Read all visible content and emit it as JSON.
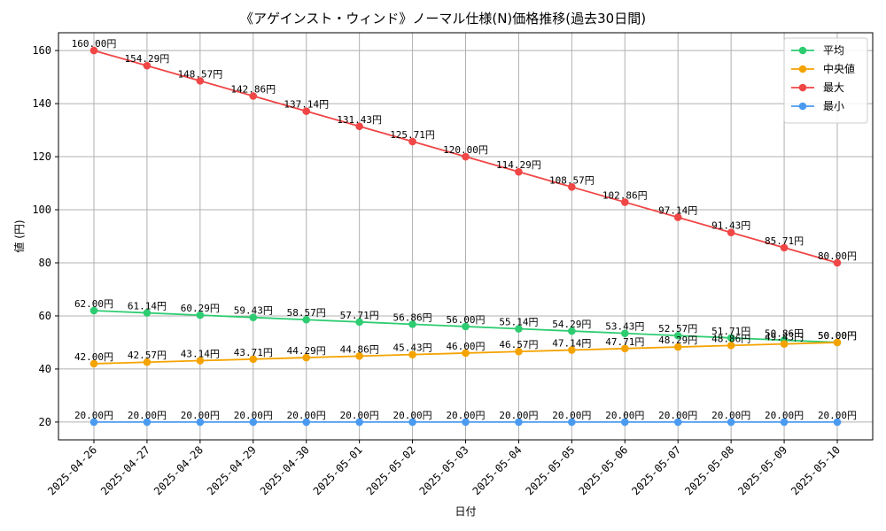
{
  "chart_data": {
    "type": "line",
    "title": "《アゲインスト・ウィンド》ノーマル仕様(N)価格推移(過去30日間)",
    "xlabel": "日付",
    "ylabel": "値 (円)",
    "ylim": [
      13.3,
      166.7
    ],
    "yticks": [
      20,
      40,
      60,
      80,
      100,
      120,
      140,
      160
    ],
    "grid": true,
    "legend_position": "top-right",
    "value_suffix": "円",
    "categories": [
      "2025-04-26",
      "2025-04-27",
      "2025-04-28",
      "2025-04-29",
      "2025-04-30",
      "2025-05-01",
      "2025-05-02",
      "2025-05-03",
      "2025-05-04",
      "2025-05-05",
      "2025-05-06",
      "2025-05-07",
      "2025-05-08",
      "2025-05-09",
      "2025-05-10"
    ],
    "series": [
      {
        "name": "平均",
        "color": "#2ecc71",
        "values": [
          62.0,
          61.14,
          60.29,
          59.43,
          58.57,
          57.71,
          56.86,
          56.0,
          55.14,
          54.29,
          53.43,
          52.57,
          51.71,
          50.86,
          50.0
        ]
      },
      {
        "name": "中央値",
        "color": "#f5a300",
        "values": [
          42.0,
          42.57,
          43.14,
          43.71,
          44.29,
          44.86,
          45.43,
          46.0,
          46.57,
          47.14,
          47.71,
          48.29,
          48.86,
          49.43,
          50.0
        ]
      },
      {
        "name": "最大",
        "color": "#f04646",
        "values": [
          160.0,
          154.29,
          148.57,
          142.86,
          137.14,
          131.43,
          125.71,
          120.0,
          114.29,
          108.57,
          102.86,
          97.14,
          91.43,
          85.71,
          80.0
        ]
      },
      {
        "name": "最小",
        "color": "#4a9af0",
        "values": [
          20.0,
          20.0,
          20.0,
          20.0,
          20.0,
          20.0,
          20.0,
          20.0,
          20.0,
          20.0,
          20.0,
          20.0,
          20.0,
          20.0,
          20.0
        ]
      }
    ]
  }
}
